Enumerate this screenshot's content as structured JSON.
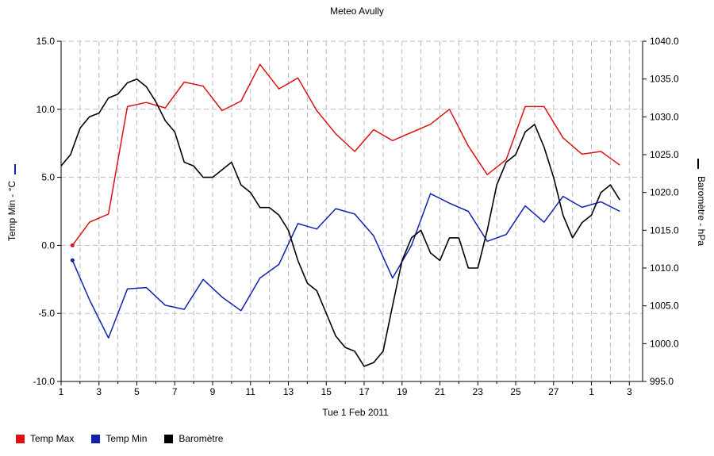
{
  "chart_data": {
    "type": "line",
    "title": "Meteo  Avully",
    "xlabel": "Tue 1 Feb 2011",
    "ylabel_left": "Temp Min - °C",
    "ylabel_right": "Baromètre - hPa",
    "x_tick_labels": [
      "1",
      "3",
      "5",
      "7",
      "9",
      "11",
      "13",
      "15",
      "17",
      "19",
      "21",
      "23",
      "25",
      "27",
      "1",
      "3"
    ],
    "left_axis": {
      "ylim": [
        -10,
        15
      ],
      "ticks": [
        "-10.0",
        "-5.0",
        "0.0",
        "5.0",
        "10.0",
        "15.0"
      ]
    },
    "right_axis": {
      "ylim": [
        995,
        1040
      ],
      "ticks": [
        "995.0",
        "1000.0",
        "1005.0",
        "1010.0",
        "1015.0",
        "1020.0",
        "1025.0",
        "1030.0",
        "1035.0",
        "1040.0"
      ]
    },
    "x_range": [
      1,
      31.7
    ],
    "grid": true,
    "legend_position": "bottom-left",
    "colors": {
      "temp_max": "#dd1111",
      "temp_min": "#1122aa",
      "barometre": "#000000"
    },
    "series": [
      {
        "name": "Temp Max",
        "axis": "left",
        "color": "#dd1111",
        "x": [
          1.6,
          2.5,
          3.5,
          4.5,
          5.5,
          6.5,
          7.5,
          8.5,
          9.5,
          10.5,
          11.5,
          12.5,
          13.5,
          14.5,
          15.5,
          16.5,
          17.5,
          18.5,
          19.5,
          20.5,
          21.5,
          22.5,
          23.5,
          24.5,
          25.5,
          26.5,
          27.5,
          28.5,
          29.5,
          30.5
        ],
        "values": [
          0,
          1.7,
          2.3,
          10.2,
          10.5,
          10.1,
          12.0,
          11.7,
          9.9,
          10.6,
          13.3,
          11.5,
          12.3,
          9.9,
          8.2,
          6.9,
          8.5,
          7.7,
          8.3,
          8.9,
          10.0,
          7.3,
          5.2,
          6.3,
          10.2,
          10.2,
          7.9,
          6.7,
          6.9,
          5.9
        ]
      },
      {
        "name": "Temp Min",
        "axis": "left",
        "color": "#1122aa",
        "x": [
          1.6,
          2.5,
          3.5,
          4.5,
          5.5,
          6.5,
          7.5,
          8.5,
          9.5,
          10.5,
          11.5,
          12.5,
          13.5,
          14.5,
          15.5,
          16.5,
          17.5,
          18.5,
          19.5,
          20.5,
          21.5,
          22.5,
          23.5,
          24.5,
          25.5,
          26.5,
          27.5,
          28.5,
          29.5,
          30.5
        ],
        "values": [
          -1.1,
          -4.0,
          -6.8,
          -3.2,
          -3.1,
          -4.4,
          -4.7,
          -2.5,
          -3.8,
          -4.8,
          -2.4,
          -1.4,
          1.6,
          1.2,
          2.7,
          2.3,
          0.7,
          -2.4,
          0.0,
          3.8,
          3.1,
          2.5,
          0.3,
          0.8,
          2.9,
          1.7,
          3.6,
          2.8,
          3.2,
          2.5
        ]
      },
      {
        "name": "Baromètre",
        "axis": "right",
        "color": "#000000",
        "x": [
          1.0,
          1.5,
          2.0,
          2.5,
          3.0,
          3.5,
          4.0,
          4.5,
          5.0,
          5.5,
          6.0,
          6.5,
          7.0,
          7.5,
          8.0,
          8.5,
          9.0,
          9.5,
          10.0,
          10.5,
          11.0,
          11.5,
          12.0,
          12.5,
          13.0,
          13.5,
          14.0,
          14.5,
          15.0,
          15.5,
          16.0,
          16.5,
          17.0,
          17.5,
          18.0,
          18.5,
          19.0,
          19.5,
          20.0,
          20.5,
          21.0,
          21.5,
          22.0,
          22.5,
          23.0,
          23.5,
          24.0,
          24.5,
          25.0,
          25.5,
          26.0,
          26.5,
          27.0,
          27.5,
          28.0,
          28.5,
          29.0,
          29.5,
          30.0,
          30.5
        ],
        "values": [
          1023.5,
          1025,
          1028.5,
          1030,
          1030.5,
          1032.5,
          1033,
          1034.5,
          1035,
          1034,
          1032,
          1029.5,
          1028,
          1024,
          1023.5,
          1022,
          1022,
          1023,
          1024,
          1021,
          1020,
          1018,
          1018,
          1017,
          1015,
          1011,
          1008,
          1007,
          1004,
          1001,
          999.5,
          999,
          997,
          997.5,
          999,
          1005,
          1011,
          1014,
          1015,
          1012,
          1011,
          1014,
          1014,
          1010,
          1010,
          1015,
          1021,
          1024,
          1025,
          1028,
          1029,
          1026,
          1022,
          1017,
          1014,
          1016,
          1017,
          1020,
          1021,
          1019
        ]
      }
    ]
  }
}
